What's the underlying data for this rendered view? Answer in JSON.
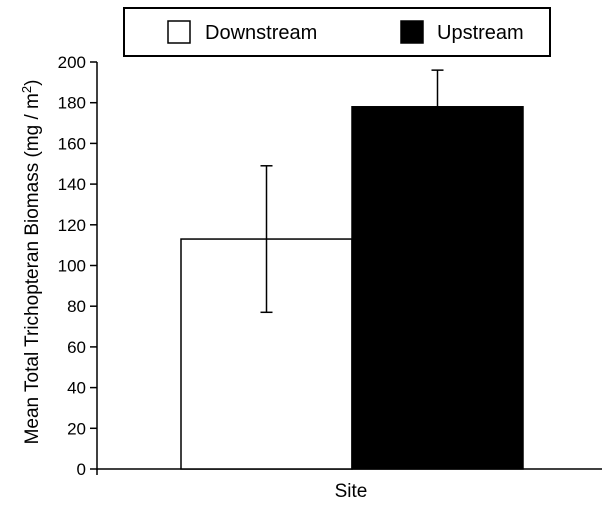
{
  "chart_data": {
    "type": "bar",
    "title": "",
    "xlabel": "Site",
    "ylabel": "Mean Total Trichopteran Biomass (mg / m",
    "ylabel_superscript": "2",
    "ylabel_suffix": ")",
    "ylim": [
      0,
      200
    ],
    "yticks": [
      0,
      20,
      40,
      60,
      80,
      100,
      120,
      140,
      160,
      180,
      200
    ],
    "legend_position": "top",
    "grid": false,
    "series": [
      {
        "name": "Downstream",
        "value": 113,
        "error_low": 77,
        "error_high": 149,
        "color": "#ffffff"
      },
      {
        "name": "Upstream",
        "value": 178,
        "error_low": 160,
        "error_high": 196,
        "color": "#000000"
      }
    ]
  }
}
